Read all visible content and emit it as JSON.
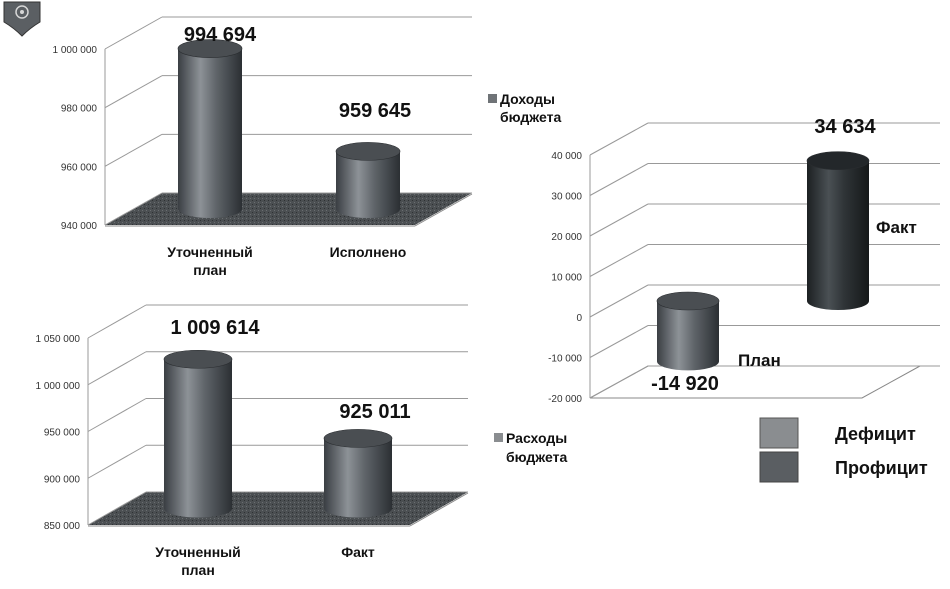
{
  "chart_data": [
    {
      "type": "bar",
      "categories": [
        "Уточненный план",
        "Исполнено"
      ],
      "series": [
        {
          "name": "Доходы бюджета",
          "values": [
            994694,
            959645
          ]
        }
      ],
      "data_labels": [
        "994 694",
        "959 645"
      ],
      "yticks": [
        "940 000",
        "960 000",
        "980 000",
        "1 000 000"
      ],
      "ylim": [
        940000,
        1000000
      ],
      "grid": true,
      "legend": {
        "label": "Доходы бюджета",
        "position": "right"
      },
      "category_labels": [
        [
          "Уточненный",
          "план"
        ],
        [
          "Исполнено"
        ]
      ],
      "legend_lines": [
        "Доходы",
        "бюджета"
      ]
    },
    {
      "type": "bar",
      "categories": [
        "Уточненный план",
        "Факт"
      ],
      "series": [
        {
          "name": "Расходы бюджета",
          "values": [
            1009614,
            925011
          ]
        }
      ],
      "data_labels": [
        "1 009 614",
        "925 011"
      ],
      "yticks": [
        "850 000",
        "900 000",
        "950 000",
        "1 000 000",
        "1 050 000"
      ],
      "ylim": [
        850000,
        1050000
      ],
      "grid": true,
      "legend": {
        "label": "Расходы бюджета",
        "position": "right"
      },
      "category_labels": [
        [
          "Уточненный",
          "план"
        ],
        [
          "Факт"
        ]
      ],
      "legend_lines": [
        "Расходы",
        "бюджета"
      ]
    },
    {
      "type": "bar",
      "categories": [
        "План",
        "Факт"
      ],
      "series": [
        {
          "name": "Дефицит / Профицит",
          "values": [
            -14920,
            34634
          ]
        }
      ],
      "data_labels": [
        "-14 920",
        "34 634"
      ],
      "yticks": [
        "-20 000",
        "-10 000",
        "0",
        "10 000",
        "20 000",
        "30 000",
        "40 000"
      ],
      "ylim": [
        -20000,
        40000
      ],
      "grid": true,
      "legend": {
        "items": [
          "Дефицит",
          "Профицит"
        ],
        "colors": [
          "#8a8d90",
          "#5a5e62"
        ],
        "position": "bottom-right"
      }
    }
  ]
}
